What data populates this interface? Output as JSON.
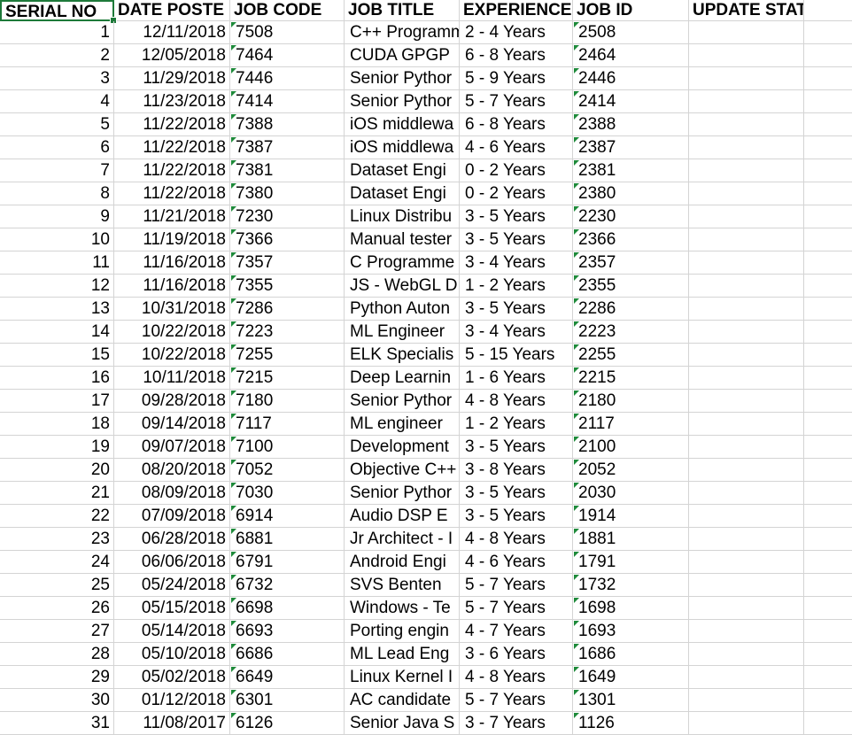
{
  "sheet": {
    "headers": [
      "SERIAL NO",
      "DATE POSTE",
      "JOB CODE",
      "JOB TITLE",
      "EXPERIENCE",
      "JOB ID",
      "UPDATE STATUS"
    ],
    "rows": [
      [
        "1",
        "12/11/2018",
        "7508",
        "C++ Programm",
        "2 - 4 Years",
        "2508"
      ],
      [
        "2",
        "12/05/2018",
        "7464",
        "CUDA GPGP",
        "6 - 8 Years",
        "2464"
      ],
      [
        "3",
        "11/29/2018",
        "7446",
        "Senior Pythor",
        "5 - 9 Years",
        "2446"
      ],
      [
        "4",
        "11/23/2018",
        "7414",
        "Senior Pythor",
        "5 - 7 Years",
        "2414"
      ],
      [
        "5",
        "11/22/2018",
        "7388",
        "iOS middlewa",
        "6 - 8 Years",
        "2388"
      ],
      [
        "6",
        "11/22/2018",
        "7387",
        "iOS middlewa",
        "4 - 6 Years",
        "2387"
      ],
      [
        "7",
        "11/22/2018",
        "7381",
        "Dataset Engi",
        "0 - 2 Years",
        "2381"
      ],
      [
        "8",
        "11/22/2018",
        "7380",
        "Dataset Engi",
        "0 - 2 Years",
        "2380"
      ],
      [
        "9",
        "11/21/2018",
        "7230",
        "Linux Distribu",
        "3 - 5 Years",
        "2230"
      ],
      [
        "10",
        "11/19/2018",
        "7366",
        "Manual tester",
        "3 - 5 Years",
        "2366"
      ],
      [
        "11",
        "11/16/2018",
        "7357",
        "C Programme",
        "3 - 4 Years",
        "2357"
      ],
      [
        "12",
        "11/16/2018",
        "7355",
        "JS - WebGL D",
        "1 - 2 Years",
        "2355"
      ],
      [
        "13",
        "10/31/2018",
        "7286",
        "Python Auton",
        "3 - 5 Years",
        "2286"
      ],
      [
        "14",
        "10/22/2018",
        "7223",
        "ML Engineer",
        "3 - 4 Years",
        "2223"
      ],
      [
        "15",
        "10/22/2018",
        "7255",
        "ELK Specialis",
        "5 - 15 Years",
        "2255"
      ],
      [
        "16",
        "10/11/2018",
        "7215",
        "Deep Learnin",
        "1 - 6 Years",
        "2215"
      ],
      [
        "17",
        "09/28/2018",
        "7180",
        "Senior Pythor",
        "4 - 8 Years",
        "2180"
      ],
      [
        "18",
        "09/14/2018",
        "7117",
        "ML engineer",
        "1 - 2 Years",
        "2117"
      ],
      [
        "19",
        "09/07/2018",
        "7100",
        "Development",
        "3 - 5 Years",
        "2100"
      ],
      [
        "20",
        "08/20/2018",
        "7052",
        "Objective C++",
        "3 - 8 Years",
        "2052"
      ],
      [
        "21",
        "08/09/2018",
        "7030",
        "Senior Pythor",
        "3 - 5 Years",
        "2030"
      ],
      [
        "22",
        "07/09/2018",
        "6914",
        "Audio DSP E",
        "3 - 5 Years",
        "1914"
      ],
      [
        "23",
        "06/28/2018",
        "6881",
        "Jr Architect - I",
        "4 - 8 Years",
        "1881"
      ],
      [
        "24",
        "06/06/2018",
        "6791",
        "Android Engi",
        "4 - 6 Years",
        "1791"
      ],
      [
        "25",
        "05/24/2018",
        "6732",
        "SVS Benten",
        "5 - 7 Years",
        "1732"
      ],
      [
        "26",
        "05/15/2018",
        "6698",
        "Windows - Te",
        "5 - 7 Years",
        "1698"
      ],
      [
        "27",
        "05/14/2018",
        "6693",
        "Porting engin",
        "4 - 7 Years",
        "1693"
      ],
      [
        "28",
        "05/10/2018",
        "6686",
        "ML Lead Eng",
        "3 - 6 Years",
        "1686"
      ],
      [
        "29",
        "05/02/2018",
        "6649",
        "Linux Kernel I",
        "4 - 8 Years",
        "1649"
      ],
      [
        "30",
        "01/12/2018",
        "6301",
        "AC candidate",
        "5 - 7 Years",
        "1301"
      ],
      [
        "31",
        "11/08/2017",
        "6126",
        "Senior Java S",
        "3 - 7 Years",
        "1126"
      ]
    ]
  },
  "colors": {
    "selection": "#1e7a3a",
    "number_stored_as_text_marker": "#1e8a3a",
    "gridline": "#d4d4d4"
  }
}
